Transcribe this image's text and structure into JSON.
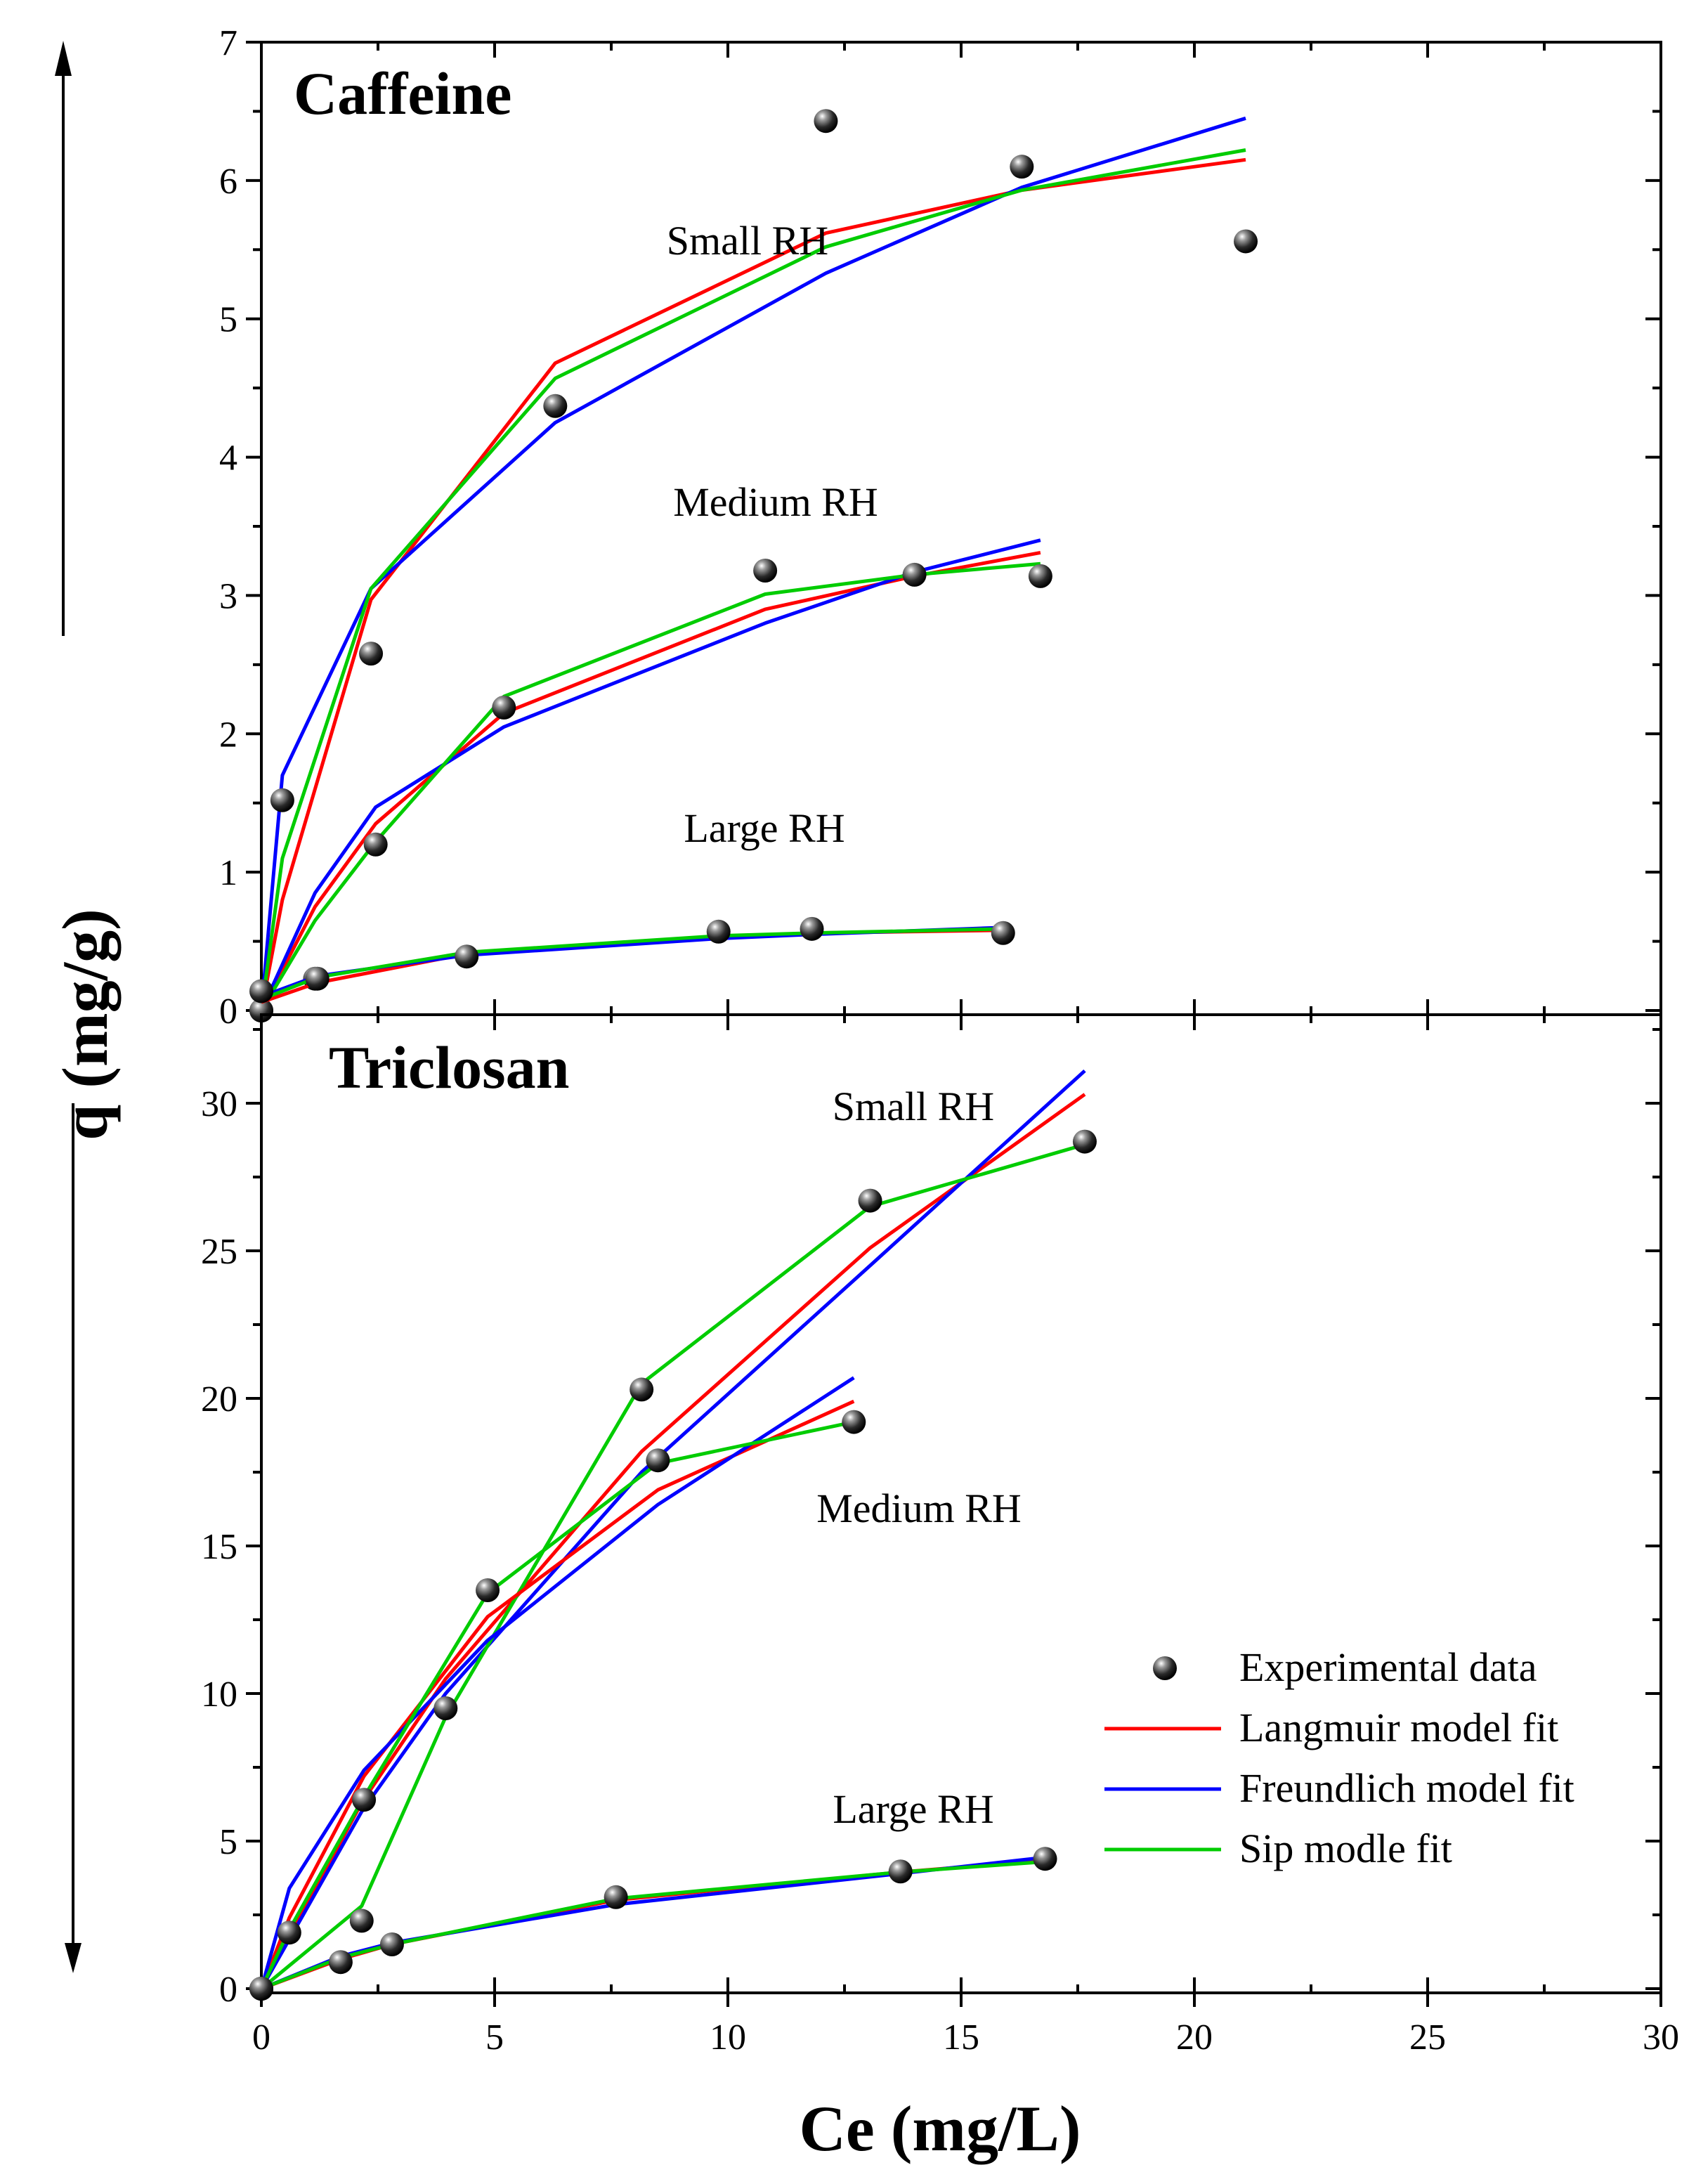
{
  "colors": {
    "langmuir": "#ff0000",
    "freundlich": "#0000ff",
    "sips": "#00cc00",
    "axis": "#000000"
  },
  "chart_data": [
    {
      "type": "scatter",
      "title": "Caffeine",
      "xlabel": "Ce (mg/L)",
      "ylabel": "q (mg/g)",
      "xlim": [
        0,
        30
      ],
      "ylim": [
        0,
        7
      ],
      "xticks": [
        "0",
        "5",
        "10",
        "15",
        "20",
        "25",
        "30"
      ],
      "yticks": [
        "0",
        "1",
        "2",
        "3",
        "4",
        "5",
        "6",
        "7"
      ],
      "groups": [
        {
          "name": "Small RH",
          "experimental": {
            "x": [
              0,
              0.45,
              2.35,
              6.3,
              12.1,
              16.3,
              21.1
            ],
            "y": [
              0,
              1.52,
              2.58,
              4.37,
              6.43,
              6.1,
              5.56
            ]
          },
          "langmuir": {
            "x": [
              0,
              0.45,
              2.35,
              6.3,
              12.1,
              16.3,
              21.1
            ],
            "y": [
              0,
              0.8,
              2.97,
              4.68,
              5.62,
              5.93,
              6.15
            ]
          },
          "freundlich": {
            "x": [
              0,
              0.45,
              2.35,
              6.3,
              12.1,
              16.3,
              21.1
            ],
            "y": [
              0,
              1.7,
              3.05,
              4.25,
              5.33,
              5.95,
              6.45
            ]
          },
          "sips": {
            "x": [
              0,
              0.45,
              2.35,
              6.3,
              12.1,
              16.3,
              21.1
            ],
            "y": [
              0,
              1.1,
              3.05,
              4.57,
              5.52,
              5.93,
              6.22
            ]
          }
        },
        {
          "name": "Medium RH",
          "experimental": {
            "x": [
              0,
              1.15,
              2.45,
              5.2,
              10.8,
              14.0,
              16.7
            ],
            "y": [
              0,
              0.23,
              1.2,
              2.19,
              3.18,
              3.15,
              3.14
            ]
          },
          "langmuir": {
            "x": [
              0,
              1.15,
              2.45,
              5.2,
              10.8,
              14.0,
              16.7
            ],
            "y": [
              0,
              0.75,
              1.35,
              2.15,
              2.9,
              3.14,
              3.31
            ]
          },
          "freundlich": {
            "x": [
              0,
              1.15,
              2.45,
              5.2,
              10.8,
              14.0,
              16.7
            ],
            "y": [
              0,
              0.85,
              1.47,
              2.05,
              2.8,
              3.17,
              3.4
            ]
          },
          "sips": {
            "x": [
              0,
              1.15,
              2.45,
              5.2,
              10.8,
              14.0,
              16.7
            ],
            "y": [
              0,
              0.65,
              1.22,
              2.27,
              3.01,
              3.15,
              3.23
            ]
          }
        },
        {
          "name": "Large RH",
          "experimental": {
            "x": [
              0,
              1.2,
              4.4,
              9.8,
              11.8,
              15.9
            ],
            "y": [
              0.14,
              0.23,
              0.39,
              0.57,
              0.59,
              0.56
            ]
          },
          "langmuir": {
            "x": [
              0,
              1.2,
              4.4,
              9.8,
              11.8,
              15.9
            ],
            "y": [
              0.06,
              0.2,
              0.41,
              0.53,
              0.56,
              0.58
            ]
          },
          "freundlich": {
            "x": [
              0,
              1.2,
              4.4,
              9.8,
              11.8,
              15.9
            ],
            "y": [
              0.1,
              0.25,
              0.4,
              0.52,
              0.55,
              0.6
            ]
          },
          "sips": {
            "x": [
              0,
              1.2,
              4.4,
              9.8,
              11.8,
              15.9
            ],
            "y": [
              0.08,
              0.24,
              0.42,
              0.54,
              0.56,
              0.59
            ]
          }
        }
      ]
    },
    {
      "type": "scatter",
      "title": "Triclosan",
      "xlabel": "Ce (mg/L)",
      "ylabel": "q (mg/g)",
      "xlim": [
        0,
        30
      ],
      "ylim": [
        0,
        33
      ],
      "xticks": [
        "0",
        "5",
        "10",
        "15",
        "20",
        "25",
        "30"
      ],
      "yticks": [
        "0",
        "5",
        "10",
        "15",
        "20",
        "25",
        "30"
      ],
      "groups": [
        {
          "name": "Small RH",
          "experimental": {
            "x": [
              0,
              2.15,
              3.95,
              8.15,
              13.05,
              17.65
            ],
            "y": [
              0,
              2.3,
              9.5,
              20.3,
              26.7,
              28.7
            ]
          },
          "langmuir": {
            "x": [
              0,
              2.15,
              3.95,
              8.15,
              13.05,
              17.65
            ],
            "y": [
              0,
              6.3,
              10.5,
              18.2,
              25.1,
              30.3
            ]
          },
          "freundlich": {
            "x": [
              0,
              2.15,
              3.95,
              8.15,
              13.05,
              17.65
            ],
            "y": [
              0,
              6.0,
              10.0,
              17.5,
              24.5,
              31.1
            ]
          },
          "sips": {
            "x": [
              0,
              2.15,
              3.95,
              8.15,
              13.05,
              17.65
            ],
            "y": [
              0,
              2.8,
              9.2,
              20.5,
              26.5,
              28.6
            ]
          }
        },
        {
          "name": "Medium RH",
          "experimental": {
            "x": [
              0,
              0.6,
              2.2,
              4.85,
              8.5,
              12.7
            ],
            "y": [
              0,
              1.9,
              6.4,
              13.5,
              17.9,
              19.2
            ]
          },
          "langmuir": {
            "x": [
              0,
              0.6,
              2.2,
              4.85,
              8.5,
              12.7
            ],
            "y": [
              0,
              2.4,
              7.2,
              12.6,
              16.9,
              19.9
            ]
          },
          "freundlich": {
            "x": [
              0,
              0.6,
              2.2,
              4.85,
              8.5,
              12.7
            ],
            "y": [
              0,
              3.4,
              7.4,
              11.8,
              16.4,
              20.7
            ]
          },
          "sips": {
            "x": [
              0,
              0.6,
              2.2,
              4.85,
              8.5,
              12.7
            ],
            "y": [
              0,
              2.0,
              6.5,
              13.4,
              17.8,
              19.2
            ]
          }
        },
        {
          "name": "Large RH",
          "experimental": {
            "x": [
              0,
              1.7,
              2.8,
              7.6,
              13.7,
              16.8
            ],
            "y": [
              0,
              0.9,
              1.5,
              3.1,
              3.97,
              4.4
            ]
          },
          "langmuir": {
            "x": [
              0,
              1.7,
              2.8,
              7.6,
              13.7,
              16.8
            ],
            "y": [
              0,
              1.0,
              1.5,
              3.0,
              3.95,
              4.35
            ]
          },
          "freundlich": {
            "x": [
              0,
              1.7,
              2.8,
              7.6,
              13.7,
              16.8
            ],
            "y": [
              0,
              1.1,
              1.55,
              2.85,
              3.9,
              4.45
            ]
          },
          "sips": {
            "x": [
              0,
              1.7,
              2.8,
              7.6,
              13.7,
              16.8
            ],
            "y": [
              0,
              1.05,
              1.5,
              3.05,
              3.95,
              4.3
            ]
          }
        }
      ]
    }
  ],
  "legend": {
    "position": "lower-right",
    "experimental": "Experimental data",
    "langmuir": "Langmuir model fit",
    "freundlich": "Freundlich model fit",
    "sips": "Sip modle fit"
  }
}
